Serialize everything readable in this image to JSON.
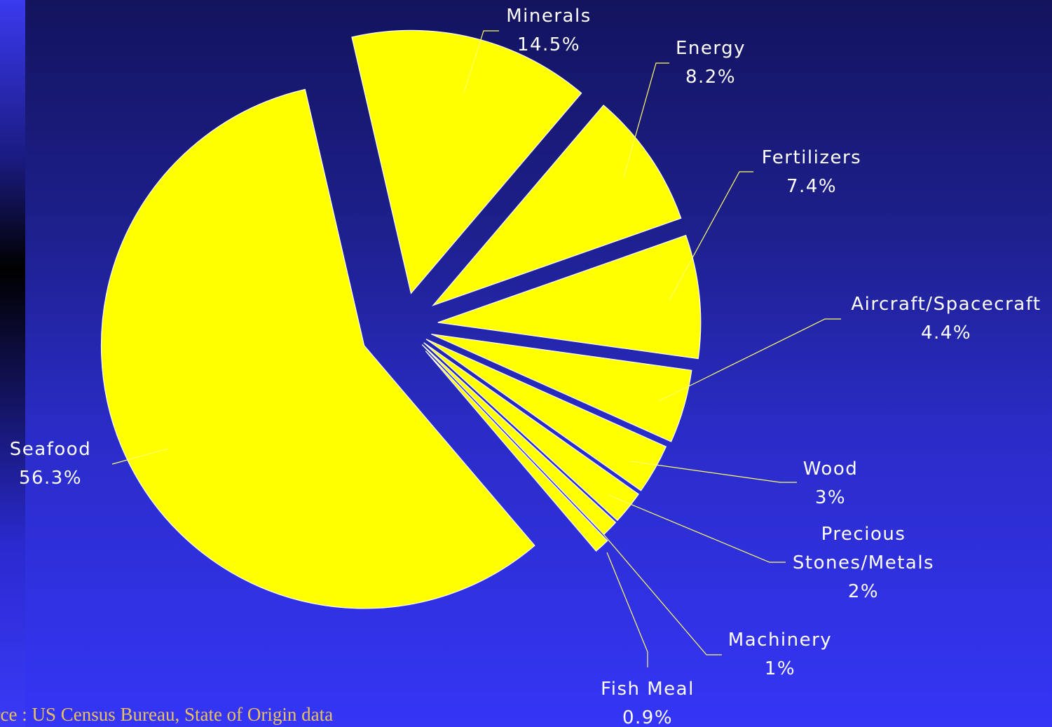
{
  "chart_data": {
    "type": "pie",
    "exploded": true,
    "slices": [
      {
        "label": "Seafood",
        "value": 56.3,
        "value_label": "56.3%"
      },
      {
        "label": "Minerals",
        "value": 14.5,
        "value_label": "14.5%"
      },
      {
        "label": "Energy",
        "value": 8.2,
        "value_label": "8.2%"
      },
      {
        "label": "Fertilizers",
        "value": 7.4,
        "value_label": "7.4%"
      },
      {
        "label": "Aircraft/Spacecraft",
        "value": 4.4,
        "value_label": "4.4%"
      },
      {
        "label": "Wood",
        "value": 3,
        "value_label": "3%"
      },
      {
        "label": "Precious Stones/Metals",
        "value": 2,
        "value_label": "2%"
      },
      {
        "label": "Machinery",
        "value": 1,
        "value_label": "1%"
      },
      {
        "label": "Fish Meal",
        "value": 0.9,
        "value_label": "0.9%"
      }
    ],
    "slice_color": "#ffff00",
    "label_color": "#ffffff",
    "leader_color": "#ffff66"
  },
  "source_note": "urce : US Census Bureau, State of Origin data",
  "colors": {
    "background_top": "#13135e",
    "background_bottom": "#3535f6",
    "source_text": "#e8c060"
  }
}
